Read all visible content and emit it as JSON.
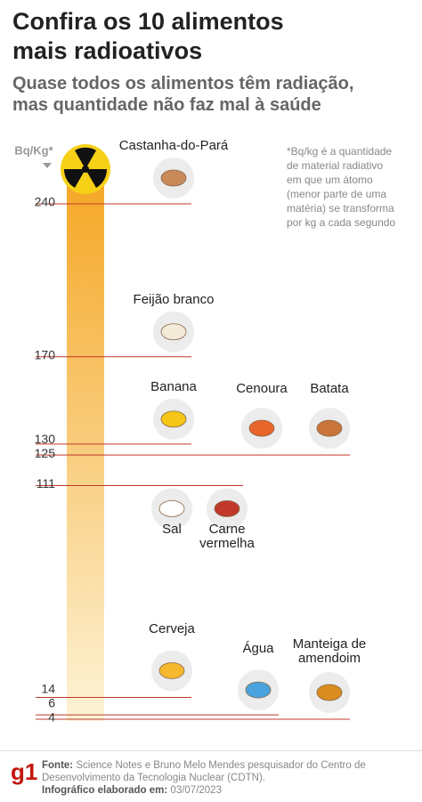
{
  "chart_data": {
    "type": "scale",
    "title": [
      "Confira os 10 alimentos",
      "mais radioativos"
    ],
    "subtitle": [
      "Quase todos os alimentos têm radiação,",
      "mas quantidade não faz mal à saúde"
    ],
    "y_label": "Bq/Kg*",
    "note": [
      "*Bq/kg é a quantidade",
      "de material radiativo",
      "em que um átomo",
      "(menor parte de uma",
      "matéria) se transforma",
      "por kg a cada segundo"
    ],
    "categories": [
      "Castanha-do-Pará",
      "Feijão branco",
      "Banana",
      "Cenoura",
      "Batata",
      "Sal",
      "Carne vermelha",
      "Cerveja",
      "Água",
      "Manteiga de amendoim"
    ],
    "values": [
      240,
      170,
      130,
      125,
      125,
      111,
      111,
      14,
      6,
      4
    ],
    "colors": [
      "#c98a5a",
      "#f3ead8",
      "#f5c518",
      "#e8652b",
      "#c8743a",
      "#ffffff",
      "#c0392b",
      "#f5b82e",
      "#4aa3df",
      "#d98c1f"
    ],
    "ylim": [
      4,
      240
    ],
    "yticks": [
      240,
      170,
      130,
      125,
      111,
      14,
      6,
      4
    ],
    "line_color": "#c0392b",
    "footer": {
      "logo": "g1",
      "source_label": "Fonte:",
      "source": "Science Notes e Bruno Melo Mendes pesquisador do Centro de Desenvolvimento da Tecnologia Nuclear (CDTN).",
      "date_label": "Infográfico elaborado em:",
      "date": "03/07/2023"
    }
  }
}
